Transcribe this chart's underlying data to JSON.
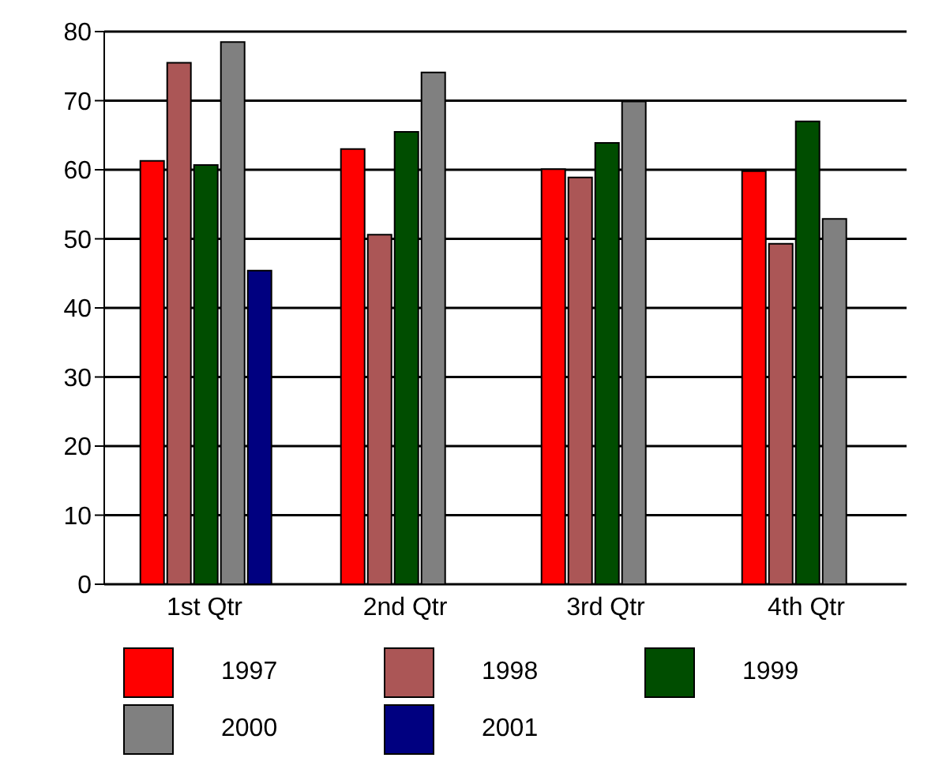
{
  "chart_data": {
    "type": "bar",
    "categories": [
      "1st Qtr",
      "2nd Qtr",
      "3rd Qtr",
      "4th Qtr"
    ],
    "series": [
      {
        "name": "1997",
        "color": "#ff0000",
        "values": [
          61.3,
          63,
          60.1,
          59.8
        ]
      },
      {
        "name": "1998",
        "color": "#ab5656",
        "values": [
          75.5,
          50.6,
          58.9,
          49.3
        ]
      },
      {
        "name": "1999",
        "color": "#004d00",
        "values": [
          60.7,
          65.5,
          63.9,
          67
        ]
      },
      {
        "name": "2000",
        "color": "#808080",
        "values": [
          78.5,
          74.1,
          69.9,
          52.9
        ]
      },
      {
        "name": "2001",
        "color": "#000080",
        "values": [
          45.4,
          null,
          null,
          null
        ]
      }
    ],
    "ylim": [
      0,
      80
    ],
    "yticks": [
      0,
      10,
      20,
      30,
      40,
      50,
      60,
      70,
      80
    ],
    "grid": "y",
    "legend": "bottom"
  }
}
